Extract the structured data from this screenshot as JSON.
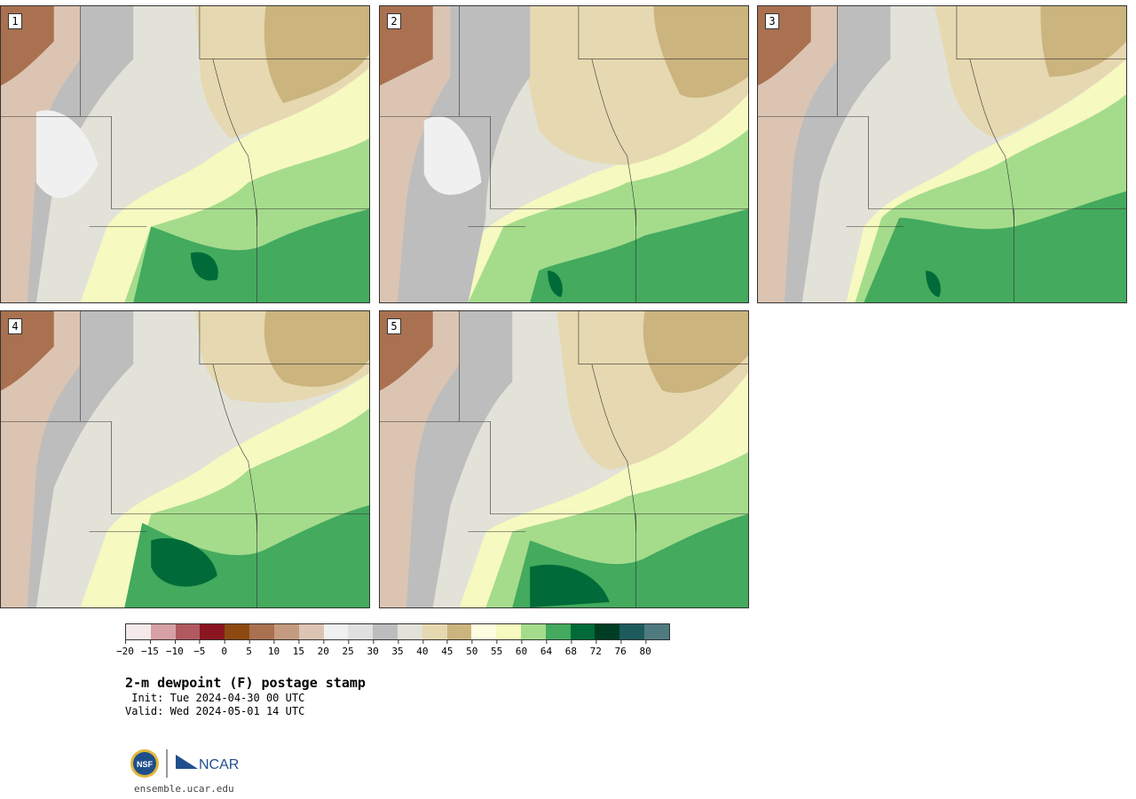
{
  "panels": [
    {
      "number": "1"
    },
    {
      "number": "2"
    },
    {
      "number": "3"
    },
    {
      "number": "4"
    },
    {
      "number": "5"
    }
  ],
  "colorbar": {
    "colors": [
      "#f5eaea",
      "#d6a0a4",
      "#b05a60",
      "#8a1520",
      "#8c4a12",
      "#a97150",
      "#c49a80",
      "#dcc4b2",
      "#f0f0f0",
      "#e0e0e0",
      "#bdbdbd",
      "#e2e2d8",
      "#e6d8b0",
      "#cbb47e",
      "#fefde0",
      "#f6f9c0",
      "#a5dc8c",
      "#43aa5e",
      "#006b38",
      "#003d22",
      "#1d5a5c",
      "#4f7a80"
    ],
    "tick_labels": [
      "−20",
      "−15",
      "−10",
      "−5",
      "0",
      "5",
      "10",
      "15",
      "20",
      "25",
      "30",
      "35",
      "40",
      "45",
      "50",
      "55",
      "60",
      "64",
      "68",
      "72",
      "76",
      "80"
    ]
  },
  "title": "2-m dewpoint (F) postage stamp",
  "init": " Init: Tue 2024-04-30 00 UTC",
  "valid": "Valid: Wed 2024-05-01 14 UTC",
  "footer_url": "ensemble.ucar.edu",
  "logos": {
    "nsf": "NSF",
    "ncar": "NCAR"
  }
}
